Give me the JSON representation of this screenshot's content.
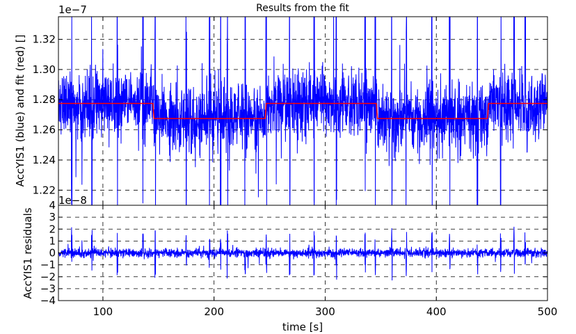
{
  "chart_data": [
    {
      "type": "line",
      "title": "Results from the fit",
      "xlabel": "",
      "ylabel": "AccYIS1 (blue) and fit (red) []",
      "offset_label": "1e−7",
      "xlim": [
        60,
        500
      ],
      "ylim": [
        1.21,
        1.335
      ],
      "y_scale_factor": 1e-07,
      "yticks": [
        1.22,
        1.24,
        1.26,
        1.28,
        1.3,
        1.32
      ],
      "ytick_labels": [
        "1.22",
        "1.24",
        "1.26",
        "1.28",
        "1.30",
        "1.32"
      ],
      "xticks": [
        100,
        200,
        300,
        400,
        500
      ],
      "grid": true,
      "series": [
        {
          "name": "",
          "color": "#0000ff",
          "description_stats": {
            "mean_segments": "follows fit",
            "std": 0.018
          }
        },
        {
          "name": "",
          "color": "#ff0000",
          "x": [
            60,
            145,
            146,
            246,
            247,
            346,
            347,
            446,
            447,
            500
          ],
          "y": [
            1.2775,
            1.2775,
            1.2675,
            1.2675,
            1.2775,
            1.2775,
            1.2675,
            1.2675,
            1.2775,
            1.2775
          ]
        }
      ]
    },
    {
      "type": "line",
      "title": "",
      "xlabel": "time [s]",
      "ylabel": "AccYIS1 residuals",
      "offset_label": "1e−8",
      "xlim": [
        60,
        500
      ],
      "ylim": [
        -4,
        4
      ],
      "y_scale_factor": 1e-08,
      "yticks": [
        -4,
        -3,
        -2,
        -1,
        0,
        1,
        2,
        3,
        4
      ],
      "ytick_labels": [
        "−4",
        "−3",
        "−2",
        "−1",
        "0",
        "1",
        "2",
        "3",
        "4"
      ],
      "xticks": [
        100,
        200,
        300,
        400,
        500
      ],
      "xtick_labels": [
        "100",
        "200",
        "300",
        "400",
        "500"
      ],
      "grid": true,
      "series": [
        {
          "name": "",
          "color": "#0000ff"
        }
      ]
    }
  ]
}
